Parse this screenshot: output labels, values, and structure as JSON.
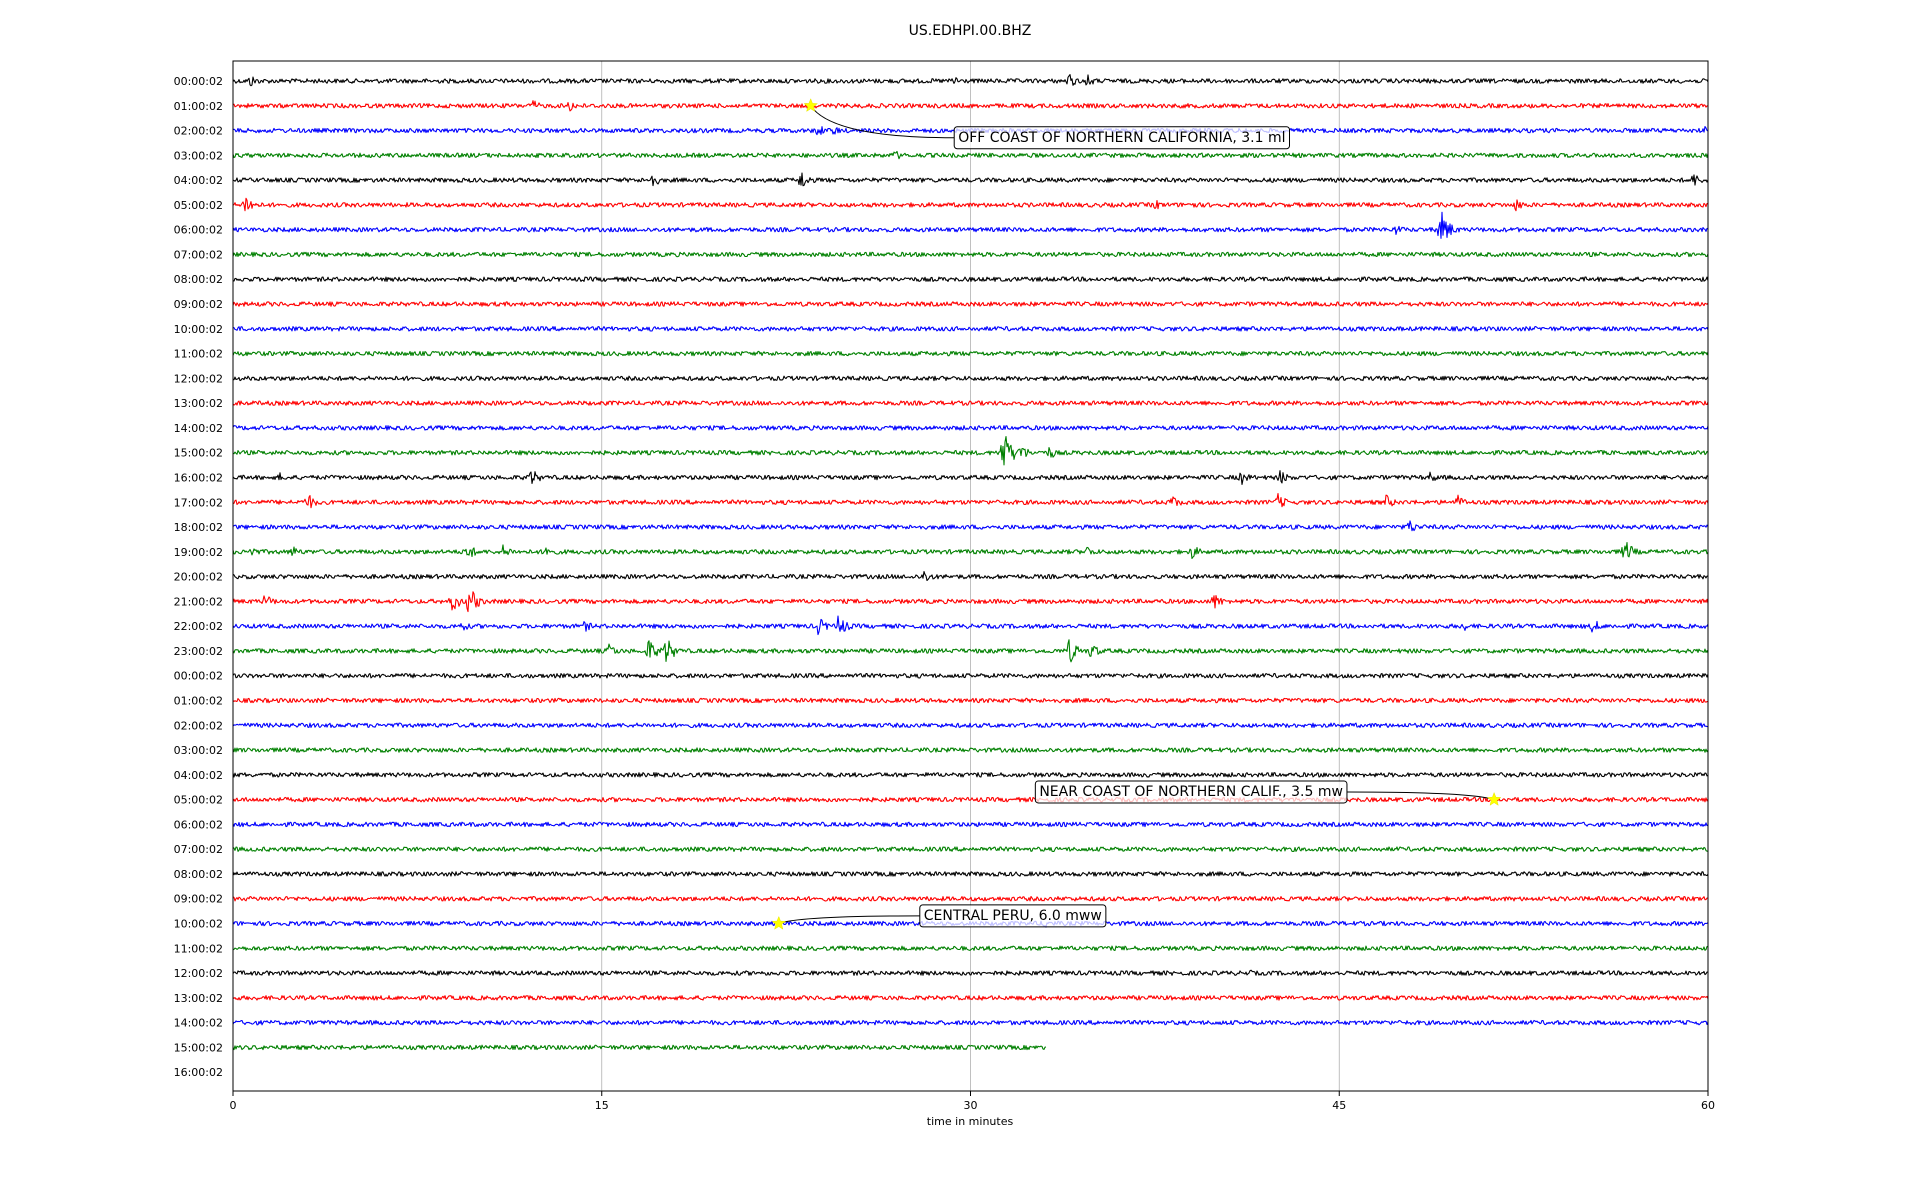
{
  "chart_data": {
    "type": "line",
    "title": "US.EDHPI.00.BHZ",
    "xlabel": "time in minutes",
    "ylabel": "",
    "xlim": [
      0,
      60
    ],
    "x_ticks": [
      0,
      15,
      30,
      45,
      60
    ],
    "vertical_grid": true,
    "colors": [
      "#000000",
      "#ff0000",
      "#0000ff",
      "#008000"
    ],
    "rows": [
      {
        "label": "00:00:02",
        "color": "#000000",
        "end": 60,
        "events": [
          {
            "t": 0.7,
            "a": 7
          },
          {
            "t": 29.3,
            "a": 7
          },
          {
            "t": 34.0,
            "a": 8
          },
          {
            "t": 34.7,
            "a": 8
          }
        ]
      },
      {
        "label": "01:00:02",
        "color": "#ff0000",
        "end": 60,
        "events": [
          {
            "t": 12.2,
            "a": 6
          },
          {
            "t": 13.6,
            "a": 8
          }
        ]
      },
      {
        "label": "02:00:02",
        "color": "#0000ff",
        "end": 60,
        "events": [
          {
            "t": 23.8,
            "a": 7
          },
          {
            "t": 24.4,
            "a": 6
          },
          {
            "t": 59.9,
            "a": 5
          }
        ]
      },
      {
        "label": "03:00:02",
        "color": "#008000",
        "end": 60,
        "events": [
          {
            "t": 26.9,
            "a": 6
          }
        ]
      },
      {
        "label": "04:00:02",
        "color": "#000000",
        "end": 60,
        "events": [
          {
            "t": 17.0,
            "a": 9
          },
          {
            "t": 23.1,
            "a": 11
          },
          {
            "t": 59.4,
            "a": 8
          }
        ]
      },
      {
        "label": "05:00:02",
        "color": "#ff0000",
        "end": 60,
        "events": [
          {
            "t": 0.5,
            "a": 12
          },
          {
            "t": 37.5,
            "a": 6
          },
          {
            "t": 38.9,
            "a": 6
          },
          {
            "t": 52.2,
            "a": 7
          }
        ]
      },
      {
        "label": "06:00:02",
        "color": "#0000ff",
        "end": 60,
        "events": [
          {
            "t": 47.3,
            "a": 6
          },
          {
            "t": 49.1,
            "a": 22
          }
        ]
      },
      {
        "label": "07:00:02",
        "color": "#008000",
        "end": 60,
        "events": []
      },
      {
        "label": "08:00:02",
        "color": "#000000",
        "end": 60,
        "events": []
      },
      {
        "label": "09:00:02",
        "color": "#ff0000",
        "end": 60,
        "events": []
      },
      {
        "label": "10:00:02",
        "color": "#0000ff",
        "end": 60,
        "events": []
      },
      {
        "label": "11:00:02",
        "color": "#008000",
        "end": 60,
        "events": []
      },
      {
        "label": "12:00:02",
        "color": "#000000",
        "end": 60,
        "events": []
      },
      {
        "label": "13:00:02",
        "color": "#ff0000",
        "end": 60,
        "events": []
      },
      {
        "label": "14:00:02",
        "color": "#0000ff",
        "end": 60,
        "events": []
      },
      {
        "label": "15:00:02",
        "color": "#008000",
        "end": 60,
        "events": [
          {
            "t": 31.3,
            "a": 26
          },
          {
            "t": 32.0,
            "a": 10
          },
          {
            "t": 33.2,
            "a": 7
          }
        ]
      },
      {
        "label": "16:00:02",
        "color": "#000000",
        "end": 60,
        "events": [
          {
            "t": 1.9,
            "a": 5
          },
          {
            "t": 12.1,
            "a": 10
          },
          {
            "t": 41.0,
            "a": 8
          },
          {
            "t": 42.6,
            "a": 8
          },
          {
            "t": 48.7,
            "a": 6
          }
        ]
      },
      {
        "label": "17:00:02",
        "color": "#ff0000",
        "end": 60,
        "events": [
          {
            "t": 3.0,
            "a": 10
          },
          {
            "t": 38.2,
            "a": 8
          },
          {
            "t": 42.5,
            "a": 9
          },
          {
            "t": 46.9,
            "a": 8
          },
          {
            "t": 49.8,
            "a": 8
          }
        ]
      },
      {
        "label": "18:00:02",
        "color": "#0000ff",
        "end": 60,
        "events": [
          {
            "t": 47.8,
            "a": 9
          }
        ]
      },
      {
        "label": "19:00:02",
        "color": "#008000",
        "end": 60,
        "events": [
          {
            "t": 0.7,
            "a": 7
          },
          {
            "t": 2.4,
            "a": 7
          },
          {
            "t": 9.5,
            "a": 10
          },
          {
            "t": 11.0,
            "a": 8
          },
          {
            "t": 12.7,
            "a": 9
          },
          {
            "t": 34.7,
            "a": 7
          },
          {
            "t": 39.0,
            "a": 8
          },
          {
            "t": 56.6,
            "a": 13
          }
        ]
      },
      {
        "label": "20:00:02",
        "color": "#000000",
        "end": 60,
        "events": [
          {
            "t": 28.1,
            "a": 8
          }
        ]
      },
      {
        "label": "21:00:02",
        "color": "#ff0000",
        "end": 60,
        "events": [
          {
            "t": 1.3,
            "a": 8
          },
          {
            "t": 8.9,
            "a": 12
          },
          {
            "t": 9.6,
            "a": 16
          },
          {
            "t": 39.9,
            "a": 9
          }
        ]
      },
      {
        "label": "22:00:02",
        "color": "#0000ff",
        "end": 60,
        "events": [
          {
            "t": 9.3,
            "a": 6
          },
          {
            "t": 14.3,
            "a": 6
          },
          {
            "t": 23.8,
            "a": 10
          },
          {
            "t": 24.6,
            "a": 13
          },
          {
            "t": 50.0,
            "a": 6
          },
          {
            "t": 55.3,
            "a": 8
          }
        ]
      },
      {
        "label": "23:00:02",
        "color": "#008000",
        "end": 60,
        "events": [
          {
            "t": 15.3,
            "a": 8
          },
          {
            "t": 16.9,
            "a": 13
          },
          {
            "t": 17.6,
            "a": 15
          },
          {
            "t": 34.0,
            "a": 14
          },
          {
            "t": 34.9,
            "a": 9
          }
        ]
      },
      {
        "label": "00:00:02",
        "color": "#000000",
        "end": 60,
        "events": []
      },
      {
        "label": "01:00:02",
        "color": "#ff0000",
        "end": 60,
        "events": []
      },
      {
        "label": "02:00:02",
        "color": "#0000ff",
        "end": 60,
        "events": []
      },
      {
        "label": "03:00:02",
        "color": "#008000",
        "end": 60,
        "events": []
      },
      {
        "label": "04:00:02",
        "color": "#000000",
        "end": 60,
        "events": []
      },
      {
        "label": "05:00:02",
        "color": "#ff0000",
        "end": 60,
        "events": []
      },
      {
        "label": "06:00:02",
        "color": "#0000ff",
        "end": 60,
        "events": []
      },
      {
        "label": "07:00:02",
        "color": "#008000",
        "end": 60,
        "events": []
      },
      {
        "label": "08:00:02",
        "color": "#000000",
        "end": 60,
        "events": []
      },
      {
        "label": "09:00:02",
        "color": "#ff0000",
        "end": 60,
        "events": []
      },
      {
        "label": "10:00:02",
        "color": "#0000ff",
        "end": 60,
        "events": [
          {
            "t": 33.0,
            "a": 6
          }
        ]
      },
      {
        "label": "11:00:02",
        "color": "#008000",
        "end": 60,
        "events": []
      },
      {
        "label": "12:00:02",
        "color": "#000000",
        "end": 60,
        "events": [
          {
            "t": 41.3,
            "a": 4
          }
        ]
      },
      {
        "label": "13:00:02",
        "color": "#ff0000",
        "end": 60,
        "events": []
      },
      {
        "label": "14:00:02",
        "color": "#0000ff",
        "end": 60,
        "events": []
      },
      {
        "label": "15:00:02",
        "color": "#008000",
        "end": 33.1,
        "events": []
      },
      {
        "label": "16:00:02",
        "color": "#000000",
        "end": 0,
        "events": []
      }
    ],
    "annotations": [
      {
        "text": "OFF COAST OF NORTHERN CALIFORNIA, 3.1 ml",
        "row": 1,
        "t": 23.5,
        "label_t": 29.5,
        "label_row": 2.25
      },
      {
        "text": "NEAR COAST OF NORTHERN CALIF., 3.5 mw",
        "row": 29,
        "t": 51.3,
        "label_t": 32.8,
        "label_row": 28.65
      },
      {
        "text": "CENTRAL PERU, 6.0 mww",
        "row": 34,
        "t": 22.2,
        "label_t": 28.1,
        "label_row": 33.65
      }
    ]
  }
}
